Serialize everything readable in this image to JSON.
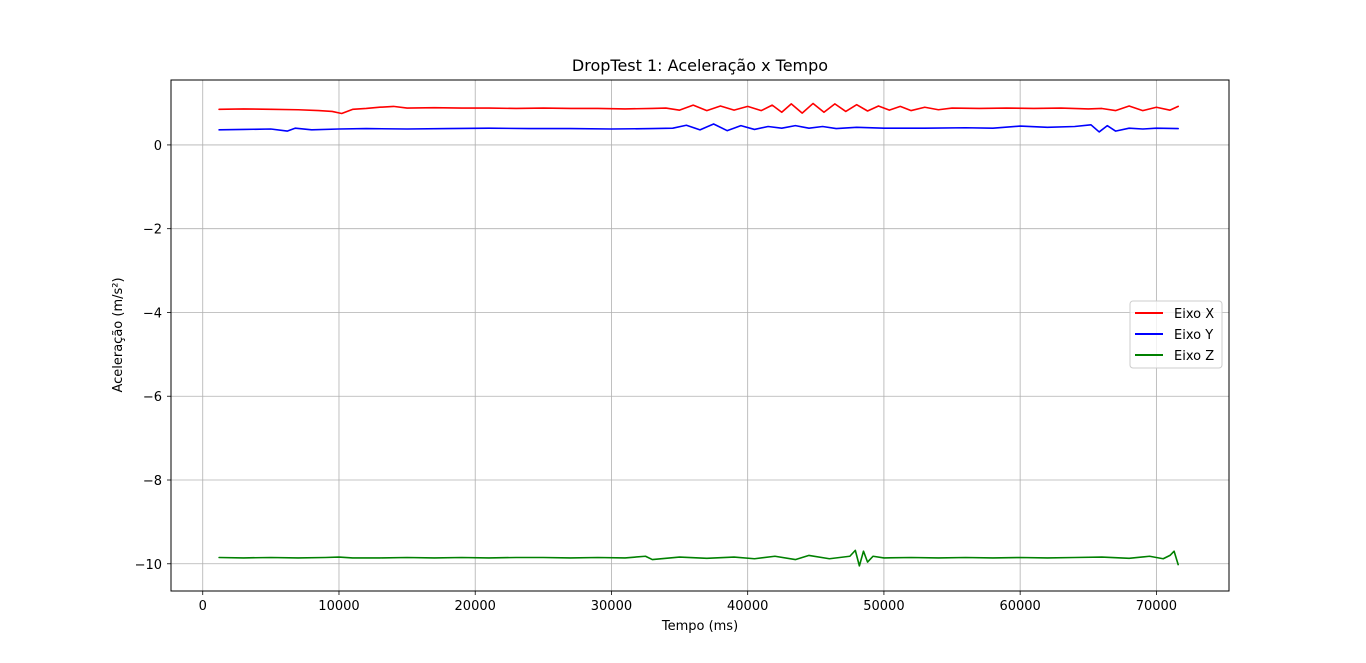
{
  "chart_data": {
    "type": "line",
    "title": "DropTest 1: Aceleração x Tempo",
    "xlabel": "Tempo (ms)",
    "ylabel": "Aceleração (m/s²)",
    "xlim": [
      -2330,
      75330
    ],
    "ylim": [
      -10.65,
      1.55
    ],
    "xticks": [
      0,
      10000,
      20000,
      30000,
      40000,
      50000,
      60000,
      70000
    ],
    "xtick_labels": [
      "0",
      "10000",
      "20000",
      "30000",
      "40000",
      "50000",
      "60000",
      "70000"
    ],
    "yticks": [
      0,
      -2,
      -4,
      -6,
      -8,
      -10
    ],
    "ytick_labels": [
      "0",
      "−2",
      "−4",
      "−6",
      "−8",
      "−10"
    ],
    "grid": true,
    "legend_position": "center-right",
    "series": [
      {
        "name": "Eixo X",
        "color": "#ff0000",
        "x": [
          1200,
          3000,
          5000,
          7000,
          8500,
          9500,
          10200,
          11000,
          12000,
          13000,
          14000,
          15000,
          17000,
          19000,
          21000,
          23000,
          25000,
          27000,
          29000,
          31000,
          33000,
          34000,
          35000,
          36000,
          37000,
          38000,
          39000,
          40000,
          41000,
          41800,
          42500,
          43200,
          44000,
          44800,
          45600,
          46400,
          47200,
          48000,
          48800,
          49600,
          50400,
          51200,
          52000,
          53000,
          54000,
          55000,
          57000,
          59000,
          61000,
          63000,
          65000,
          66000,
          67000,
          68000,
          69000,
          70000,
          71000,
          71600
        ],
        "values": [
          0.85,
          0.86,
          0.85,
          0.84,
          0.82,
          0.8,
          0.75,
          0.85,
          0.87,
          0.9,
          0.92,
          0.88,
          0.89,
          0.88,
          0.88,
          0.87,
          0.88,
          0.87,
          0.87,
          0.86,
          0.87,
          0.88,
          0.83,
          0.95,
          0.82,
          0.93,
          0.83,
          0.92,
          0.82,
          0.95,
          0.78,
          0.98,
          0.76,
          0.99,
          0.78,
          0.98,
          0.8,
          0.96,
          0.81,
          0.93,
          0.83,
          0.92,
          0.82,
          0.9,
          0.84,
          0.88,
          0.87,
          0.88,
          0.87,
          0.88,
          0.86,
          0.87,
          0.82,
          0.93,
          0.82,
          0.9,
          0.83,
          0.92
        ]
      },
      {
        "name": "Eixo Y",
        "color": "#0000ff",
        "x": [
          1200,
          3000,
          5000,
          6200,
          6800,
          8000,
          10000,
          12000,
          15000,
          18000,
          21000,
          24000,
          27000,
          30000,
          33000,
          34500,
          35500,
          36500,
          37500,
          38500,
          39500,
          40500,
          41500,
          42500,
          43500,
          44500,
          45500,
          46500,
          48000,
          50000,
          53000,
          56000,
          58000,
          60000,
          62000,
          64000,
          65200,
          65800,
          66400,
          67000,
          68000,
          69000,
          70000,
          71600
        ],
        "values": [
          0.36,
          0.37,
          0.38,
          0.33,
          0.4,
          0.36,
          0.38,
          0.39,
          0.38,
          0.39,
          0.4,
          0.39,
          0.39,
          0.38,
          0.39,
          0.4,
          0.47,
          0.36,
          0.5,
          0.34,
          0.46,
          0.37,
          0.44,
          0.4,
          0.46,
          0.4,
          0.44,
          0.39,
          0.42,
          0.4,
          0.4,
          0.41,
          0.4,
          0.45,
          0.42,
          0.44,
          0.48,
          0.31,
          0.46,
          0.33,
          0.4,
          0.38,
          0.4,
          0.39
        ]
      },
      {
        "name": "Eixo Z",
        "color": "#008000",
        "x": [
          1200,
          3000,
          5000,
          7000,
          9000,
          10000,
          11000,
          13000,
          15000,
          17000,
          19000,
          21000,
          23000,
          25000,
          27000,
          29000,
          31000,
          32500,
          33000,
          35000,
          37000,
          39000,
          40500,
          42000,
          43500,
          44500,
          46000,
          47500,
          47900,
          48200,
          48500,
          48800,
          49200,
          50000,
          52000,
          54000,
          56000,
          58000,
          60000,
          62000,
          64000,
          66000,
          68000,
          69500,
          70500,
          71000,
          71300,
          71600
        ],
        "values": [
          -9.85,
          -9.86,
          -9.85,
          -9.86,
          -9.85,
          -9.84,
          -9.86,
          -9.86,
          -9.85,
          -9.86,
          -9.85,
          -9.86,
          -9.85,
          -9.85,
          -9.86,
          -9.85,
          -9.86,
          -9.82,
          -9.9,
          -9.84,
          -9.87,
          -9.84,
          -9.88,
          -9.82,
          -9.9,
          -9.8,
          -9.88,
          -9.82,
          -9.68,
          -10.05,
          -9.7,
          -9.96,
          -9.82,
          -9.86,
          -9.85,
          -9.86,
          -9.85,
          -9.86,
          -9.85,
          -9.86,
          -9.85,
          -9.84,
          -9.87,
          -9.82,
          -9.88,
          -9.8,
          -9.7,
          -10.02
        ]
      }
    ]
  }
}
